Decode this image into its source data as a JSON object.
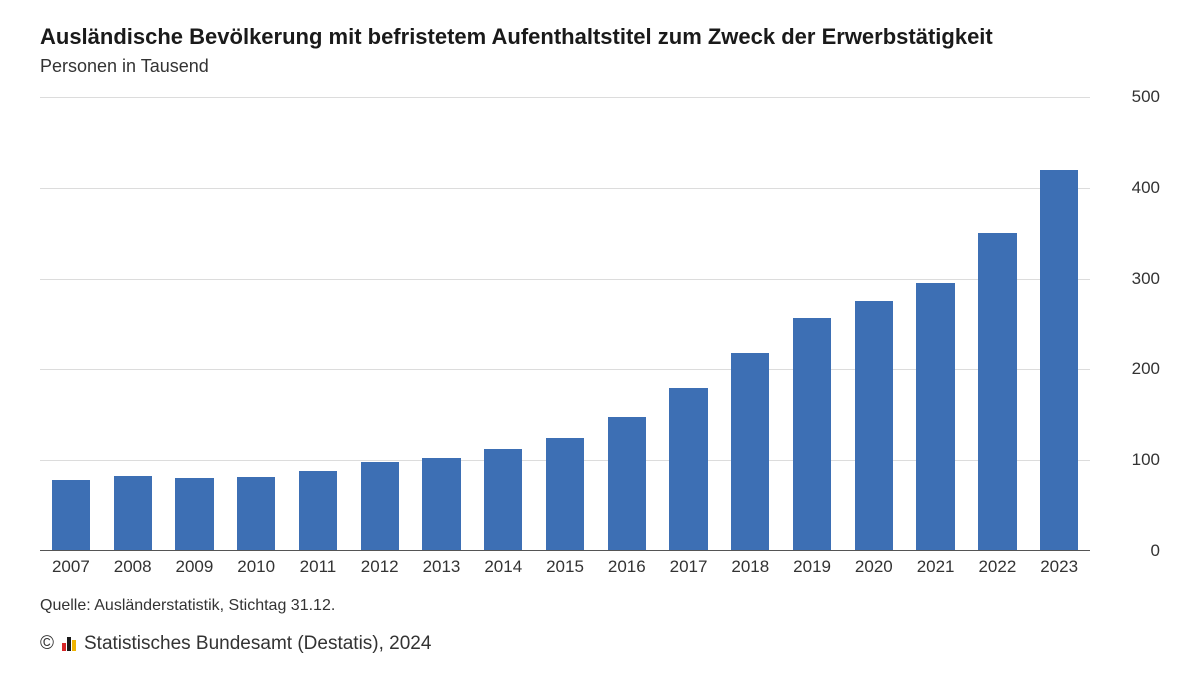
{
  "title": "Ausländische Bevölkerung mit befristetem Aufenthaltstitel zum Zweck der Erwerbstätigkeit",
  "subtitle": "Personen in Tausend",
  "chart": {
    "type": "bar",
    "categories": [
      "2007",
      "2008",
      "2009",
      "2010",
      "2011",
      "2012",
      "2013",
      "2014",
      "2015",
      "2016",
      "2017",
      "2018",
      "2019",
      "2020",
      "2021",
      "2022",
      "2023"
    ],
    "values": [
      78,
      83,
      80,
      82,
      88,
      98,
      102,
      112,
      125,
      148,
      180,
      218,
      257,
      275,
      295,
      350,
      420
    ],
    "bar_color": "#3d6fb4",
    "ylim": [
      0,
      500
    ],
    "yticks": [
      0,
      100,
      200,
      300,
      400,
      500
    ],
    "grid_color": "#dcdcdc",
    "baseline_color": "#555555",
    "background_color": "#ffffff",
    "label_fontsize": 17,
    "title_fontsize": 22,
    "bar_width_ratio": 0.62
  },
  "source": "Quelle: Ausländerstatistik, Stichtag 31.12.",
  "footer": {
    "copyright": "©",
    "org": "Statistisches Bundesamt (Destatis), 2024",
    "logo_colors": [
      "#d62728",
      "#1a1a1a",
      "#f0b400"
    ],
    "logo_heights": [
      8,
      14,
      11
    ]
  }
}
